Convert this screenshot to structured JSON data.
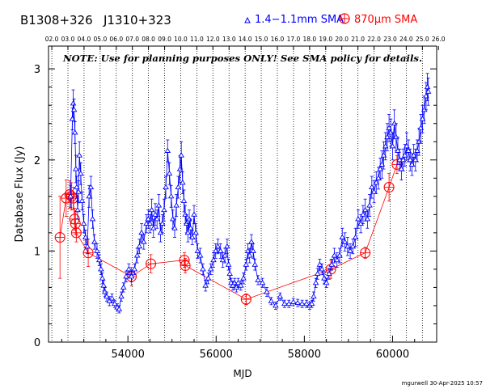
{
  "header": {
    "source_name": "B1308+326",
    "alt_name": "J1310+323",
    "legend": [
      {
        "marker": "triangle",
        "label": "1.4−1.1mm SMA",
        "color": "#0000ff"
      },
      {
        "marker": "circle-plus",
        "label": "870μm SMA",
        "color": "#ff0000"
      }
    ]
  },
  "note": "NOTE: Use for planning purposes ONLY!  See SMA policy for details.",
  "footer": "mgurwell 30-Apr-2025 10:57",
  "chart_data": {
    "type": "scatter",
    "xlabel": "MJD",
    "ylabel": "Database Flux (Jy)",
    "xlim": [
      52200,
      61000
    ],
    "ylim": [
      0,
      3.25
    ],
    "xticks": [
      54000,
      56000,
      58000,
      60000
    ],
    "yticks": [
      0,
      1,
      2,
      3
    ],
    "top_axis_years": [
      "02.0",
      "03.0",
      "04.0",
      "05.0",
      "06.0",
      "07.0",
      "08.0",
      "09.0",
      "10.0",
      "11.0",
      "12.0",
      "13.0",
      "14.0",
      "15.0",
      "16.0",
      "17.0",
      "18.0",
      "19.0",
      "20.0",
      "21.0",
      "22.0",
      "23.0",
      "24.0",
      "25.0",
      "26.0"
    ],
    "top_axis_mjd": [
      52275,
      52640,
      53005,
      53371,
      53736,
      54101,
      54466,
      54832,
      55197,
      55562,
      55927,
      56293,
      56658,
      57023,
      57388,
      57754,
      58119,
      58484,
      58849,
      59215,
      59580,
      59945,
      60310,
      60676,
      61041
    ],
    "year_line_mjd": [
      52275,
      52640,
      53005,
      53371,
      53736,
      54101,
      54466,
      54832,
      55197,
      55562,
      55927,
      56293,
      56658,
      57023,
      57388,
      57754,
      58119,
      58484,
      58849,
      59215,
      59580,
      59945,
      60310,
      60676
    ],
    "series": [
      {
        "name": "1.4−1.1mm SMA",
        "color": "#0000ff",
        "marker": "triangle",
        "points": [
          [
            52700,
            1.6,
            0.12
          ],
          [
            52740,
            2.45,
            0.12
          ],
          [
            52760,
            2.62,
            0.15
          ],
          [
            52780,
            2.55,
            0.12
          ],
          [
            52800,
            2.3,
            0.12
          ],
          [
            52820,
            1.9,
            0.15
          ],
          [
            52840,
            1.7,
            0.12
          ],
          [
            52860,
            1.45,
            0.1
          ],
          [
            52880,
            1.65,
            0.12
          ],
          [
            52900,
            2.05,
            0.15
          ],
          [
            52930,
            1.85,
            0.12
          ],
          [
            52960,
            1.55,
            0.1
          ],
          [
            53000,
            1.3,
            0.1
          ],
          [
            53040,
            1.15,
            0.08
          ],
          [
            53080,
            1.05,
            0.08
          ],
          [
            53120,
            1.6,
            0.12
          ],
          [
            53160,
            1.7,
            0.12
          ],
          [
            53200,
            1.35,
            0.1
          ],
          [
            53240,
            1.1,
            0.08
          ],
          [
            53300,
            1.0,
            0.08
          ],
          [
            53350,
            0.9,
            0.06
          ],
          [
            53390,
            0.8,
            0.06
          ],
          [
            53420,
            0.7,
            0.06
          ],
          [
            53450,
            0.62,
            0.06
          ],
          [
            53480,
            0.55,
            0.05
          ],
          [
            53520,
            0.5,
            0.05
          ],
          [
            53580,
            0.45,
            0.05
          ],
          [
            53640,
            0.48,
            0.05
          ],
          [
            53700,
            0.42,
            0.04
          ],
          [
            53760,
            0.38,
            0.04
          ],
          [
            53800,
            0.36,
            0.04
          ],
          [
            53850,
            0.5,
            0.05
          ],
          [
            53900,
            0.6,
            0.05
          ],
          [
            53960,
            0.72,
            0.06
          ],
          [
            54020,
            0.8,
            0.06
          ],
          [
            54080,
            0.72,
            0.06
          ],
          [
            54150,
            0.8,
            0.06
          ],
          [
            54210,
            0.95,
            0.08
          ],
          [
            54260,
            1.05,
            0.08
          ],
          [
            54310,
            1.2,
            0.1
          ],
          [
            54360,
            1.1,
            0.08
          ],
          [
            54420,
            1.3,
            0.1
          ],
          [
            54460,
            1.35,
            0.1
          ],
          [
            54500,
            1.3,
            0.1
          ],
          [
            54540,
            1.45,
            0.12
          ],
          [
            54580,
            1.25,
            0.1
          ],
          [
            54620,
            1.4,
            0.12
          ],
          [
            54660,
            1.35,
            0.1
          ],
          [
            54700,
            1.5,
            0.12
          ],
          [
            54740,
            1.2,
            0.1
          ],
          [
            54780,
            1.3,
            0.1
          ],
          [
            54820,
            1.45,
            0.12
          ],
          [
            54860,
            1.7,
            0.12
          ],
          [
            54900,
            2.1,
            0.12
          ],
          [
            54940,
            1.85,
            0.12
          ],
          [
            54980,
            1.6,
            0.12
          ],
          [
            55020,
            1.35,
            0.1
          ],
          [
            55060,
            1.25,
            0.1
          ],
          [
            55100,
            1.5,
            0.12
          ],
          [
            55140,
            1.7,
            0.12
          ],
          [
            55180,
            1.9,
            0.15
          ],
          [
            55210,
            2.05,
            0.15
          ],
          [
            55240,
            1.75,
            0.12
          ],
          [
            55270,
            1.55,
            0.12
          ],
          [
            55300,
            1.4,
            0.1
          ],
          [
            55330,
            1.3,
            0.1
          ],
          [
            55360,
            1.2,
            0.1
          ],
          [
            55390,
            1.35,
            0.1
          ],
          [
            55420,
            1.25,
            0.1
          ],
          [
            55460,
            1.15,
            0.08
          ],
          [
            55500,
            1.4,
            0.1
          ],
          [
            55540,
            1.2,
            0.1
          ],
          [
            55580,
            1.0,
            0.08
          ],
          [
            55640,
            0.95,
            0.08
          ],
          [
            55700,
            0.8,
            0.06
          ],
          [
            55760,
            0.62,
            0.06
          ],
          [
            55820,
            0.7,
            0.06
          ],
          [
            55880,
            0.8,
            0.06
          ],
          [
            55940,
            0.9,
            0.08
          ],
          [
            55990,
            1.0,
            0.08
          ],
          [
            56040,
            1.05,
            0.08
          ],
          [
            56100,
            1.0,
            0.08
          ],
          [
            56150,
            0.9,
            0.08
          ],
          [
            56200,
            0.95,
            0.08
          ],
          [
            56250,
            1.05,
            0.08
          ],
          [
            56280,
            0.85,
            0.06
          ],
          [
            56310,
            0.75,
            0.06
          ],
          [
            56340,
            0.65,
            0.05
          ],
          [
            56380,
            0.62,
            0.05
          ],
          [
            56420,
            0.65,
            0.05
          ],
          [
            56460,
            0.6,
            0.05
          ],
          [
            56500,
            0.65,
            0.05
          ],
          [
            56560,
            0.62,
            0.05
          ],
          [
            56620,
            0.7,
            0.06
          ],
          [
            56680,
            0.85,
            0.06
          ],
          [
            56720,
            1.0,
            0.08
          ],
          [
            56760,
            0.95,
            0.08
          ],
          [
            56800,
            1.1,
            0.08
          ],
          [
            56840,
            1.0,
            0.08
          ],
          [
            56880,
            0.85,
            0.06
          ],
          [
            56950,
            0.68,
            0.05
          ],
          [
            57050,
            0.65,
            0.05
          ],
          [
            57150,
            0.55,
            0.05
          ],
          [
            57250,
            0.45,
            0.04
          ],
          [
            57350,
            0.4,
            0.04
          ],
          [
            57450,
            0.5,
            0.04
          ],
          [
            57550,
            0.42,
            0.04
          ],
          [
            57650,
            0.42,
            0.04
          ],
          [
            57750,
            0.44,
            0.04
          ],
          [
            57850,
            0.43,
            0.04
          ],
          [
            57950,
            0.42,
            0.04
          ],
          [
            58050,
            0.42,
            0.04
          ],
          [
            58120,
            0.4,
            0.04
          ],
          [
            58170,
            0.42,
            0.04
          ],
          [
            58210,
            0.5,
            0.05
          ],
          [
            58260,
            0.65,
            0.05
          ],
          [
            58300,
            0.75,
            0.06
          ],
          [
            58350,
            0.85,
            0.06
          ],
          [
            58400,
            0.8,
            0.06
          ],
          [
            58450,
            0.7,
            0.06
          ],
          [
            58500,
            0.65,
            0.05
          ],
          [
            58560,
            0.75,
            0.06
          ],
          [
            58620,
            0.85,
            0.06
          ],
          [
            58680,
            0.95,
            0.08
          ],
          [
            58740,
            0.9,
            0.08
          ],
          [
            58800,
            0.95,
            0.08
          ],
          [
            58860,
            1.15,
            0.1
          ],
          [
            58920,
            1.1,
            0.1
          ],
          [
            58980,
            1.05,
            0.1
          ],
          [
            59040,
            1.0,
            0.08
          ],
          [
            59100,
            1.05,
            0.08
          ],
          [
            59160,
            1.15,
            0.1
          ],
          [
            59220,
            1.35,
            0.1
          ],
          [
            59280,
            1.3,
            0.1
          ],
          [
            59330,
            1.4,
            0.1
          ],
          [
            59380,
            1.45,
            0.12
          ],
          [
            59430,
            1.35,
            0.1
          ],
          [
            59480,
            1.5,
            0.12
          ],
          [
            59530,
            1.7,
            0.12
          ],
          [
            59580,
            1.65,
            0.12
          ],
          [
            59630,
            1.75,
            0.12
          ],
          [
            59680,
            1.8,
            0.12
          ],
          [
            59720,
            1.9,
            0.12
          ],
          [
            59760,
            1.95,
            0.15
          ],
          [
            59800,
            2.05,
            0.15
          ],
          [
            59840,
            2.15,
            0.15
          ],
          [
            59880,
            2.25,
            0.15
          ],
          [
            59920,
            2.35,
            0.15
          ],
          [
            59960,
            2.3,
            0.15
          ],
          [
            60000,
            2.15,
            0.15
          ],
          [
            60040,
            2.4,
            0.15
          ],
          [
            60080,
            2.25,
            0.15
          ],
          [
            60120,
            2.1,
            0.15
          ],
          [
            60160,
            2.0,
            0.12
          ],
          [
            60200,
            1.9,
            0.12
          ],
          [
            60240,
            2.0,
            0.12
          ],
          [
            60280,
            2.05,
            0.12
          ],
          [
            60320,
            2.15,
            0.15
          ],
          [
            60360,
            2.1,
            0.12
          ],
          [
            60400,
            2.0,
            0.12
          ],
          [
            60440,
            1.95,
            0.12
          ],
          [
            60480,
            2.05,
            0.12
          ],
          [
            60520,
            2.0,
            0.12
          ],
          [
            60560,
            2.1,
            0.12
          ],
          [
            60600,
            2.2,
            0.15
          ],
          [
            60640,
            2.35,
            0.15
          ],
          [
            60680,
            2.45,
            0.15
          ],
          [
            60720,
            2.55,
            0.15
          ],
          [
            60760,
            2.7,
            0.15
          ],
          [
            60790,
            2.8,
            0.15
          ],
          [
            60810,
            2.75,
            0.15
          ]
        ]
      },
      {
        "name": "870μm SMA",
        "color": "#ff0000",
        "marker": "circle-plus",
        "points": [
          [
            52460,
            1.15,
            0.45
          ],
          [
            52600,
            1.58,
            0.2
          ],
          [
            52680,
            1.62,
            0.15
          ],
          [
            52720,
            1.6,
            0.15
          ],
          [
            52760,
            1.58,
            0.12
          ],
          [
            52790,
            1.35,
            0.12
          ],
          [
            52810,
            1.3,
            0.12
          ],
          [
            52830,
            1.2,
            0.1
          ],
          [
            53100,
            0.98,
            0.15
          ],
          [
            54080,
            0.72,
            0.1
          ],
          [
            54520,
            0.86,
            0.1
          ],
          [
            55280,
            0.9,
            0.08
          ],
          [
            55300,
            0.84,
            0.08
          ],
          [
            56680,
            0.47,
            0.06
          ],
          [
            58600,
            0.8,
            0.1
          ],
          [
            59380,
            0.98,
            0.06
          ],
          [
            59920,
            1.7,
            0.15
          ],
          [
            60100,
            1.95,
            0.1
          ]
        ]
      }
    ]
  }
}
